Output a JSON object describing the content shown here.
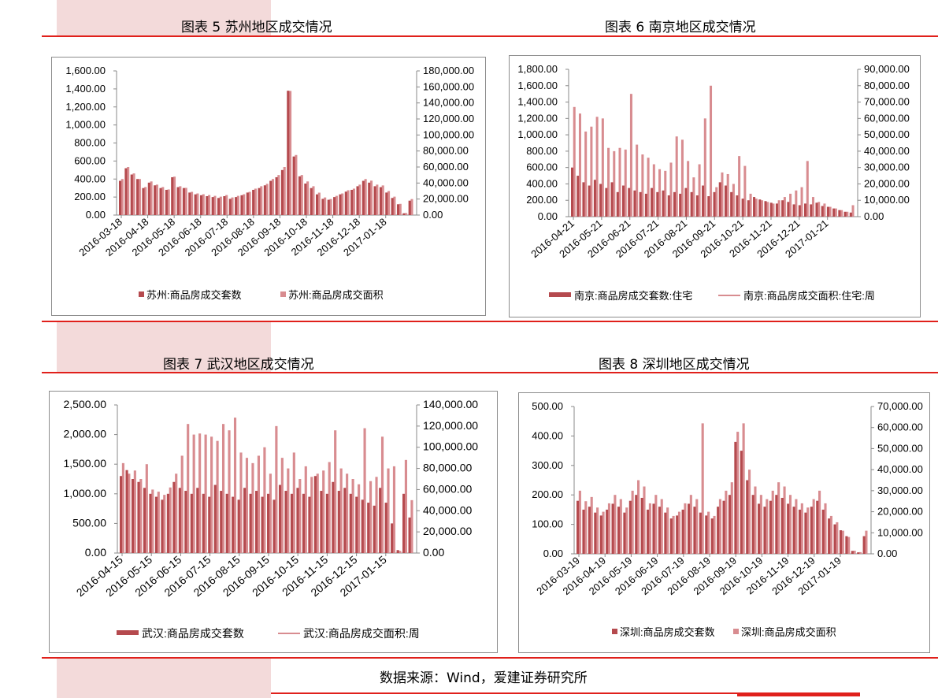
{
  "colors": {
    "dark_red": "#b54a4e",
    "light_pink": "#d88c90",
    "accent_red": "#e0201b",
    "pink_block": "#f3dada"
  },
  "source": "数据来源：Wind，爱建证券研究所",
  "chart_data": [
    {
      "type": "bar",
      "title": "图表 5  苏州地区成交情况",
      "x_ticks": [
        "2016-03-18",
        "2016-04-18",
        "2016-05-18",
        "2016-06-18",
        "2016-07-18",
        "2016-08-18",
        "2016-09-18",
        "2016-10-18",
        "2016-11-18",
        "2016-12-18",
        "2017-01-18"
      ],
      "left_axis": {
        "ticks": [
          "0.00",
          "200.00",
          "400.00",
          "600.00",
          "800.00",
          "1,000.00",
          "1,200.00",
          "1,400.00",
          "1,600.00"
        ],
        "min": 0,
        "max": 1600
      },
      "right_axis": {
        "ticks": [
          "0.00",
          "20,000.00",
          "40,000.00",
          "60,000.00",
          "80,000.00",
          "100,000.00",
          "120,000.00",
          "140,000.00",
          "160,000.00",
          "180,000.00"
        ],
        "min": 0,
        "max": 180000
      },
      "legend": [
        "苏州:商品房成交套数",
        "苏州:商品房成交面积"
      ],
      "legend_style": [
        "square-dark",
        "square-light"
      ],
      "series": [
        {
          "name": "苏州:商品房成交套数",
          "axis": "left",
          "values": [
            380,
            520,
            450,
            400,
            300,
            360,
            330,
            300,
            280,
            420,
            310,
            300,
            250,
            230,
            220,
            210,
            200,
            190,
            210,
            180,
            200,
            220,
            250,
            280,
            300,
            330,
            380,
            420,
            500,
            1380,
            650,
            430,
            350,
            300,
            230,
            180,
            170,
            200,
            230,
            260,
            280,
            320,
            380,
            360,
            320,
            310,
            250,
            190,
            120,
            20,
            160
          ]
        },
        {
          "name": "苏州:商品房成交面积",
          "axis": "right",
          "values": [
            45000,
            60000,
            52000,
            45000,
            35000,
            42000,
            38000,
            35000,
            32000,
            48000,
            36000,
            34000,
            29000,
            27000,
            26000,
            25000,
            24000,
            23000,
            25000,
            22000,
            24000,
            26000,
            29000,
            33000,
            36000,
            39000,
            45000,
            50000,
            60000,
            155000,
            75000,
            50000,
            42000,
            36000,
            28000,
            22000,
            20000,
            24000,
            27000,
            31000,
            33000,
            38000,
            45000,
            43000,
            38000,
            37000,
            30000,
            23000,
            14000,
            2500,
            20000
          ]
        }
      ]
    },
    {
      "type": "bar",
      "title": "图表 6  南京地区成交情况",
      "x_ticks": [
        "2016-04-21",
        "2016-05-21",
        "2016-06-21",
        "2016-07-21",
        "2016-08-21",
        "2016-09-21",
        "2016-10-21",
        "2016-11-21",
        "2016-12-21",
        "2017-01-21"
      ],
      "left_axis": {
        "ticks": [
          "0.00",
          "200.00",
          "400.00",
          "600.00",
          "800.00",
          "1,000.00",
          "1,200.00",
          "1,400.00",
          "1,600.00",
          "1,800.00"
        ],
        "min": 0,
        "max": 1800
      },
      "right_axis": {
        "ticks": [
          "0.00",
          "10,000.00",
          "20,000.00",
          "30,000.00",
          "40,000.00",
          "50,000.00",
          "60,000.00",
          "70,000.00",
          "80,000.00",
          "90,000.00"
        ],
        "min": 0,
        "max": 90000
      },
      "legend": [
        "南京:商品房成交套数:住宅",
        "南京:商品房成交面积:住宅:周"
      ],
      "legend_style": [
        "bar-dark",
        "line-light"
      ],
      "series": [
        {
          "name": "南京:商品房成交套数:住宅",
          "axis": "left",
          "values": [
            600,
            500,
            420,
            380,
            450,
            400,
            350,
            420,
            300,
            380,
            350,
            320,
            300,
            280,
            350,
            300,
            320,
            260,
            300,
            280,
            350,
            300,
            260,
            380,
            250,
            300,
            420,
            380,
            300,
            260,
            220,
            200,
            240,
            210,
            190,
            170,
            160,
            200,
            180,
            150,
            140,
            160,
            150,
            170,
            130,
            120,
            100,
            80,
            60,
            50
          ]
        },
        {
          "name": "南京:商品房成交面积:住宅:周",
          "axis": "right",
          "values": [
            67000,
            63000,
            52000,
            55000,
            61000,
            60000,
            42000,
            40000,
            42000,
            41000,
            75000,
            44000,
            38000,
            36000,
            32000,
            29000,
            28000,
            33000,
            49000,
            47000,
            34000,
            24000,
            32000,
            60000,
            80000,
            18000,
            27000,
            26000,
            20000,
            37000,
            31000,
            14000,
            11000,
            10000,
            9000,
            8000,
            10000,
            12000,
            14000,
            16000,
            18000,
            34000,
            12000,
            9000,
            8000,
            6000,
            5000,
            4000,
            3000,
            7000
          ]
        }
      ]
    },
    {
      "type": "bar",
      "title": "图表 7  武汉地区成交情况",
      "x_ticks": [
        "2016-04-15",
        "2016-05-15",
        "2016-06-15",
        "2016-07-15",
        "2016-08-15",
        "2016-09-15",
        "2016-10-15",
        "2016-11-15",
        "2016-12-15",
        "2017-01-15"
      ],
      "left_axis": {
        "ticks": [
          "0.00",
          "500.00",
          "1,000.00",
          "1,500.00",
          "2,000.00",
          "2,500.00"
        ],
        "min": 0,
        "max": 2500
      },
      "right_axis": {
        "ticks": [
          "0.00",
          "20,000.00",
          "40,000.00",
          "60,000.00",
          "80,000.00",
          "100,000.00",
          "120,000.00",
          "140,000.00"
        ],
        "min": 0,
        "max": 140000
      },
      "legend": [
        "武汉:商品房成交套数",
        "武汉:商品房成交面积:周"
      ],
      "legend_style": [
        "bar-dark",
        "line-light"
      ],
      "series": [
        {
          "name": "武汉:商品房成交套数",
          "axis": "left",
          "values": [
            1300,
            1400,
            1250,
            1200,
            1100,
            1000,
            950,
            900,
            1000,
            1200,
            1100,
            1050,
            1000,
            1100,
            1000,
            950,
            1150,
            1050,
            1000,
            950,
            900,
            1100,
            1000,
            1050,
            950,
            1000,
            900,
            1150,
            1050,
            1000,
            1100,
            1000,
            950,
            1300,
            1050,
            1000,
            1200,
            1050,
            1100,
            1000,
            950,
            900,
            850,
            800,
            1100,
            850,
            500,
            50,
            1000,
            600
          ]
        },
        {
          "name": "武汉:商品房成交面积:周",
          "axis": "right",
          "values": [
            85000,
            75000,
            78000,
            70000,
            84000,
            60000,
            58000,
            55000,
            62000,
            75000,
            92000,
            122000,
            112000,
            113000,
            112000,
            110000,
            106000,
            122000,
            116000,
            128000,
            95000,
            90000,
            85000,
            92000,
            100000,
            75000,
            120000,
            90000,
            80000,
            95000,
            70000,
            82000,
            72000,
            75000,
            78000,
            86000,
            116000,
            80000,
            75000,
            70000,
            65000,
            118000,
            68000,
            72000,
            110000,
            80000,
            82000,
            2000,
            88000,
            50000
          ]
        }
      ]
    },
    {
      "type": "bar",
      "title": "图表 8  深圳地区成交情况",
      "x_ticks": [
        "2016-03-19",
        "2016-04-19",
        "2016-05-19",
        "2016-06-19",
        "2016-07-19",
        "2016-08-19",
        "2016-09-19",
        "2016-10-19",
        "2016-11-19",
        "2016-12-19",
        "2017-01-19"
      ],
      "left_axis": {
        "ticks": [
          "0.00",
          "100.00",
          "200.00",
          "300.00",
          "400.00",
          "500.00"
        ],
        "min": 0,
        "max": 500
      },
      "right_axis": {
        "ticks": [
          "0.00",
          "10,000.00",
          "20,000.00",
          "30,000.00",
          "40,000.00",
          "50,000.00",
          "60,000.00",
          "70,000.00"
        ],
        "min": 0,
        "max": 70000
      },
      "legend": [
        "深圳:商品房成交套数",
        "深圳:商品房成交面积"
      ],
      "legend_style": [
        "square-dark",
        "square-light"
      ],
      "series": [
        {
          "name": "深圳:商品房成交套数",
          "axis": "left",
          "values": [
            180,
            150,
            160,
            140,
            130,
            150,
            170,
            160,
            140,
            180,
            200,
            190,
            150,
            170,
            160,
            140,
            120,
            130,
            150,
            170,
            160,
            140,
            130,
            120,
            160,
            180,
            200,
            380,
            350,
            250,
            200,
            170,
            160,
            180,
            200,
            190,
            170,
            160,
            150,
            140,
            160,
            180,
            150,
            120,
            100,
            80,
            60,
            10,
            5,
            60
          ]
        },
        {
          "name": "深圳:商品房成交面积",
          "axis": "right",
          "values": [
            30000,
            25000,
            27000,
            22000,
            20000,
            24000,
            28000,
            26000,
            22000,
            30000,
            35000,
            32000,
            24000,
            28000,
            26000,
            22000,
            18000,
            20000,
            24000,
            28000,
            26000,
            62000,
            20000,
            18000,
            26000,
            30000,
            34000,
            58000,
            62000,
            40000,
            32000,
            28000,
            26000,
            30000,
            34000,
            32000,
            28000,
            26000,
            24000,
            22000,
            26000,
            30000,
            24000,
            18000,
            15000,
            11000,
            8000,
            1500,
            800,
            11000
          ]
        }
      ]
    }
  ]
}
